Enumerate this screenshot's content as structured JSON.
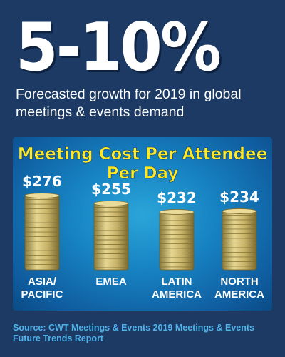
{
  "headline": "5-10%",
  "subhead": "Forecasted growth for 2019 in global meetings & events demand",
  "colors": {
    "background": "#1c3a63",
    "title_yellow": "#ffe924",
    "coin_gold": "#c9b468",
    "source_blue": "#4fb2ea"
  },
  "chart_data": {
    "type": "bar",
    "title": "Meeting Cost Per Attendee Per Day",
    "title_lines": [
      "Meeting Cost Per Attendee",
      "Per Day"
    ],
    "categories": [
      "ASIA/ PACIFIC",
      "EMEA",
      "LATIN AMERICA",
      "NORTH AMERICA"
    ],
    "category_lines": [
      [
        "ASIA/",
        "PACIFIC"
      ],
      [
        "EMEA"
      ],
      [
        "LATIN",
        "AMERICA"
      ],
      [
        "NORTH",
        "AMERICA"
      ]
    ],
    "values": [
      276,
      255,
      232,
      234
    ],
    "value_labels": [
      "$276",
      "$255",
      "$232",
      "$234"
    ],
    "mark_style": "stacked-coins",
    "grid": false,
    "legend": "none"
  },
  "source": "Source: CWT Meetings & Events 2019 Meetings & Events Future Trends Report"
}
